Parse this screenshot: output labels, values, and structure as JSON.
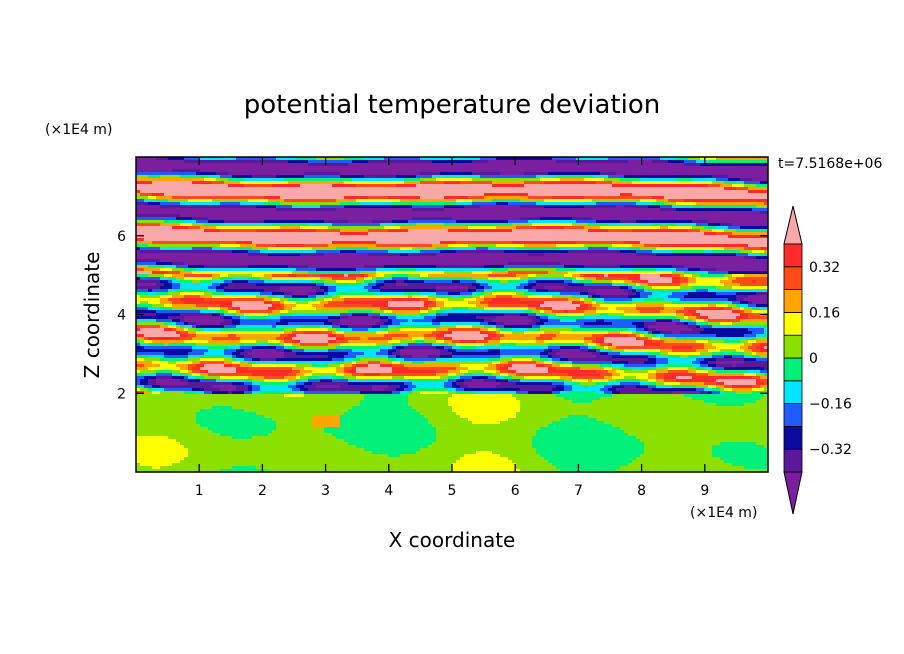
{
  "chart_data": {
    "type": "heatmap",
    "title": "potential temperature deviation",
    "xlabel": "X coordinate",
    "ylabel": "Z coordinate",
    "x_unit": "(×1E4 m)",
    "y_unit": "(×1E4 m)",
    "time_label": "t=7.5168e+06",
    "xlim": [
      0,
      10
    ],
    "ylim": [
      0,
      8
    ],
    "x_ticks": [
      1,
      2,
      3,
      4,
      5,
      6,
      7,
      8,
      9
    ],
    "y_ticks": [
      2,
      4,
      6
    ],
    "colorbar": {
      "levels": [
        -0.4,
        -0.32,
        -0.24,
        -0.16,
        -0.08,
        0,
        0.08,
        0.16,
        0.24,
        0.32,
        0.4
      ],
      "tick_labels": [
        "0.32",
        "0.16",
        "0",
        "−0.16",
        "−0.32"
      ],
      "tick_values": [
        0.32,
        0.16,
        0,
        -0.16,
        -0.32
      ],
      "colors": [
        "#7b1fa0",
        "#5a189a",
        "#0a0aa0",
        "#1e5cff",
        "#00e5ff",
        "#00f07a",
        "#8ce000",
        "#ffff00",
        "#ffa500",
        "#ff4a1a",
        "#ff2a2a",
        "#f8a8a8"
      ]
    }
  }
}
